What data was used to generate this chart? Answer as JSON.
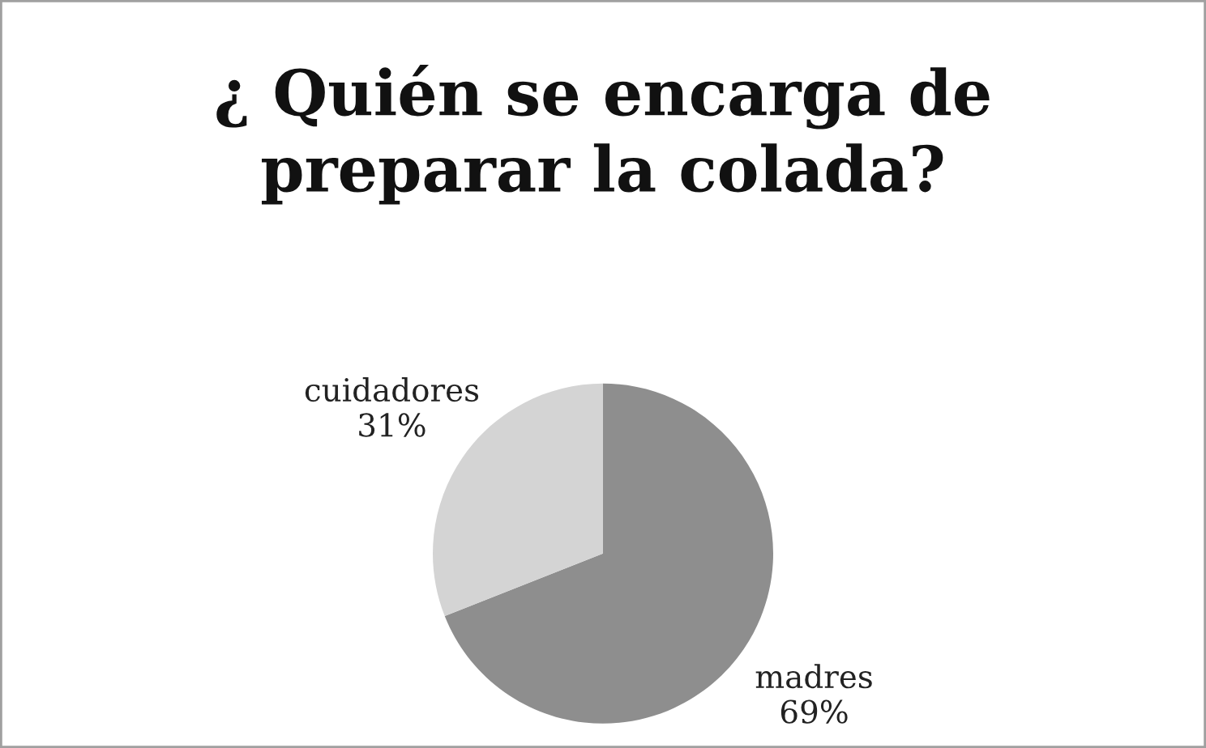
{
  "chart_data": {
    "type": "pie",
    "title": "¿ Quién se encarga de\npreparar la colada?",
    "categories": [
      "madres",
      "cuidadores"
    ],
    "values": [
      69,
      31
    ],
    "value_labels": [
      "69%",
      "31%"
    ],
    "colors": [
      "#8e8e8e",
      "#d4d4d4"
    ]
  }
}
